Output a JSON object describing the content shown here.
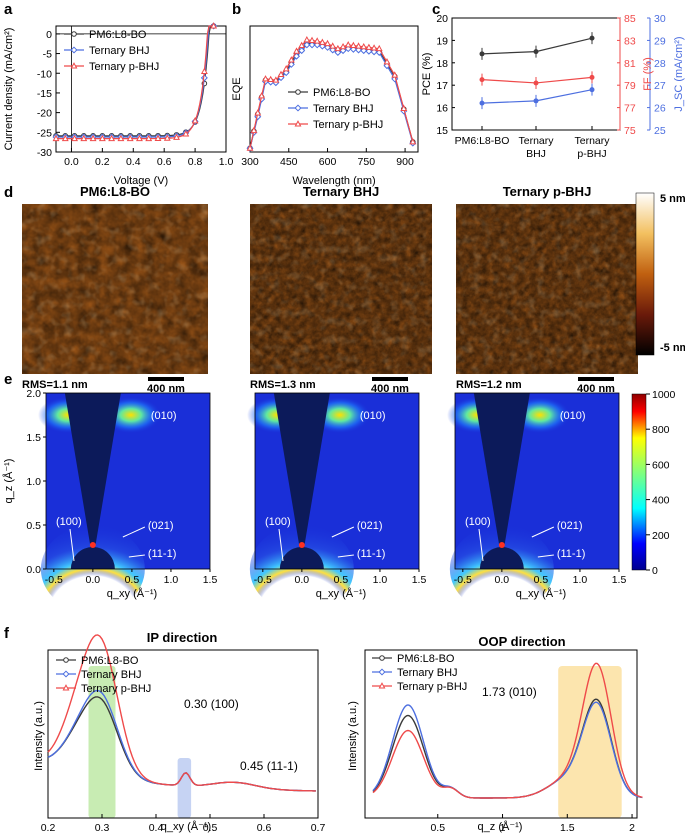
{
  "panels": {
    "a": "a",
    "b": "b",
    "c": "c",
    "d": "d",
    "e": "e",
    "f": "f"
  },
  "colors": {
    "black": "#3a3a3a",
    "blue": "#4d6fe0",
    "red": "#ef4a4a"
  },
  "chart_data": [
    {
      "id": "a",
      "type": "line",
      "xlabel": "Voltage (V)",
      "ylabel": "Current density (mA/cm²)",
      "xlim": [
        -0.1,
        1.0
      ],
      "ylim": [
        -30,
        2
      ],
      "xticks": [
        "0.0",
        "0.2",
        "0.4",
        "0.6",
        "0.8",
        "1.0"
      ],
      "yticks": [
        "0",
        "-5",
        "-10",
        "-15",
        "-20",
        "-25",
        "-30"
      ],
      "series": [
        {
          "name": "PM6:L8-BO",
          "jsc": -25.9,
          "voc": 0.89
        },
        {
          "name": "Ternary BHJ",
          "jsc": -26.2,
          "voc": 0.885
        },
        {
          "name": "Ternary p-BHJ",
          "jsc": -26.6,
          "voc": 0.88
        }
      ]
    },
    {
      "id": "b",
      "type": "line",
      "xlabel": "Wavelength (nm)",
      "ylabel": "EQE",
      "xlim": [
        300,
        950
      ],
      "ylim": [
        0,
        1
      ],
      "xticks": [
        "300",
        "450",
        "600",
        "750",
        "900"
      ],
      "series": [
        {
          "name": "PM6:L8-BO",
          "values": [
            0.03,
            0.3,
            0.57,
            0.56,
            0.64,
            0.78,
            0.86,
            0.86,
            0.84,
            0.8,
            0.83,
            0.82,
            0.81,
            0.8,
            0.6,
            0.08
          ]
        },
        {
          "name": "Ternary BHJ",
          "values": [
            0.03,
            0.28,
            0.56,
            0.55,
            0.63,
            0.76,
            0.85,
            0.85,
            0.83,
            0.79,
            0.82,
            0.81,
            0.8,
            0.79,
            0.58,
            0.07
          ]
        },
        {
          "name": "Ternary p-BHJ",
          "values": [
            0.03,
            0.31,
            0.58,
            0.57,
            0.66,
            0.8,
            0.89,
            0.88,
            0.86,
            0.82,
            0.85,
            0.84,
            0.83,
            0.82,
            0.61,
            0.08
          ]
        }
      ],
      "x": [
        300,
        330,
        360,
        400,
        440,
        480,
        520,
        560,
        600,
        640,
        680,
        720,
        760,
        800,
        860,
        930
      ]
    },
    {
      "id": "c",
      "type": "line",
      "categories": [
        "PM6:L8-BO",
        "Ternary BHJ",
        "Ternary p-BHJ"
      ],
      "ylabels": {
        "pce": "PCE (%)",
        "ff": "FF (%)",
        "jsc": "J_SC (mA/cm²)"
      },
      "pce": {
        "ticks": [
          "15",
          "16",
          "17",
          "18",
          "19",
          "20"
        ],
        "ylim": [
          15,
          20
        ],
        "values": [
          18.4,
          18.5,
          19.1
        ]
      },
      "ff": {
        "ticks": [
          "75",
          "77",
          "79",
          "81",
          "83",
          "85"
        ],
        "ylim": [
          75,
          85
        ],
        "values": [
          79.5,
          79.2,
          79.7
        ]
      },
      "jsc": {
        "ticks": [
          "25",
          "26",
          "27",
          "28",
          "29",
          "30"
        ],
        "ylim": [
          25,
          30
        ],
        "values": [
          26.2,
          26.3,
          26.8
        ]
      }
    },
    {
      "id": "f1",
      "type": "line",
      "title": "IP direction",
      "xlabel": "q_xy (Å⁻¹)",
      "ylabel": "Intensity (a.u.)",
      "xlim": [
        0.2,
        0.7
      ],
      "xticks": [
        "0.2",
        "0.3",
        "0.4",
        "0.5",
        "0.6",
        "0.7"
      ],
      "annotations": [
        "0.30 (100)",
        "0.45 (11-1)"
      ]
    },
    {
      "id": "f2",
      "type": "line",
      "title": "OOP direction",
      "xlabel": "q_z (Å⁻¹)",
      "ylabel": "Intensity (a.u.)",
      "xlim": [
        0.0,
        2.1
      ],
      "xticks": [
        "0.5",
        "1",
        "1.5",
        "2"
      ],
      "annotations": [
        "1.73 (010)"
      ]
    }
  ],
  "legend": [
    "PM6:L8-BO",
    "Ternary BHJ",
    "Ternary p-BHJ"
  ],
  "afm": {
    "titles": [
      "PM6:L8-BO",
      "Ternary BHJ",
      "Ternary p-BHJ"
    ],
    "rms": [
      "RMS=1.1 nm",
      "RMS=1.3 nm",
      "RMS=1.2 nm"
    ],
    "scale": "400 nm",
    "cbar_top": "5 nm",
    "cbar_bottom": "-5 nm"
  },
  "giwaxs": {
    "ylabel": "q_z (Å⁻¹)",
    "xlabel": "q_xy (Å⁻¹)",
    "xticks": [
      "-0.5",
      "0.0",
      "0.5",
      "1.0",
      "1.5"
    ],
    "yticks": [
      "2.0",
      "1.5",
      "1.0",
      "0.5",
      "0.0"
    ],
    "peaks": [
      "(010)",
      "(100)",
      "(021)",
      "(11-1)"
    ],
    "cbar_ticks": [
      "1000",
      "800",
      "600",
      "400",
      "200",
      "0"
    ]
  }
}
